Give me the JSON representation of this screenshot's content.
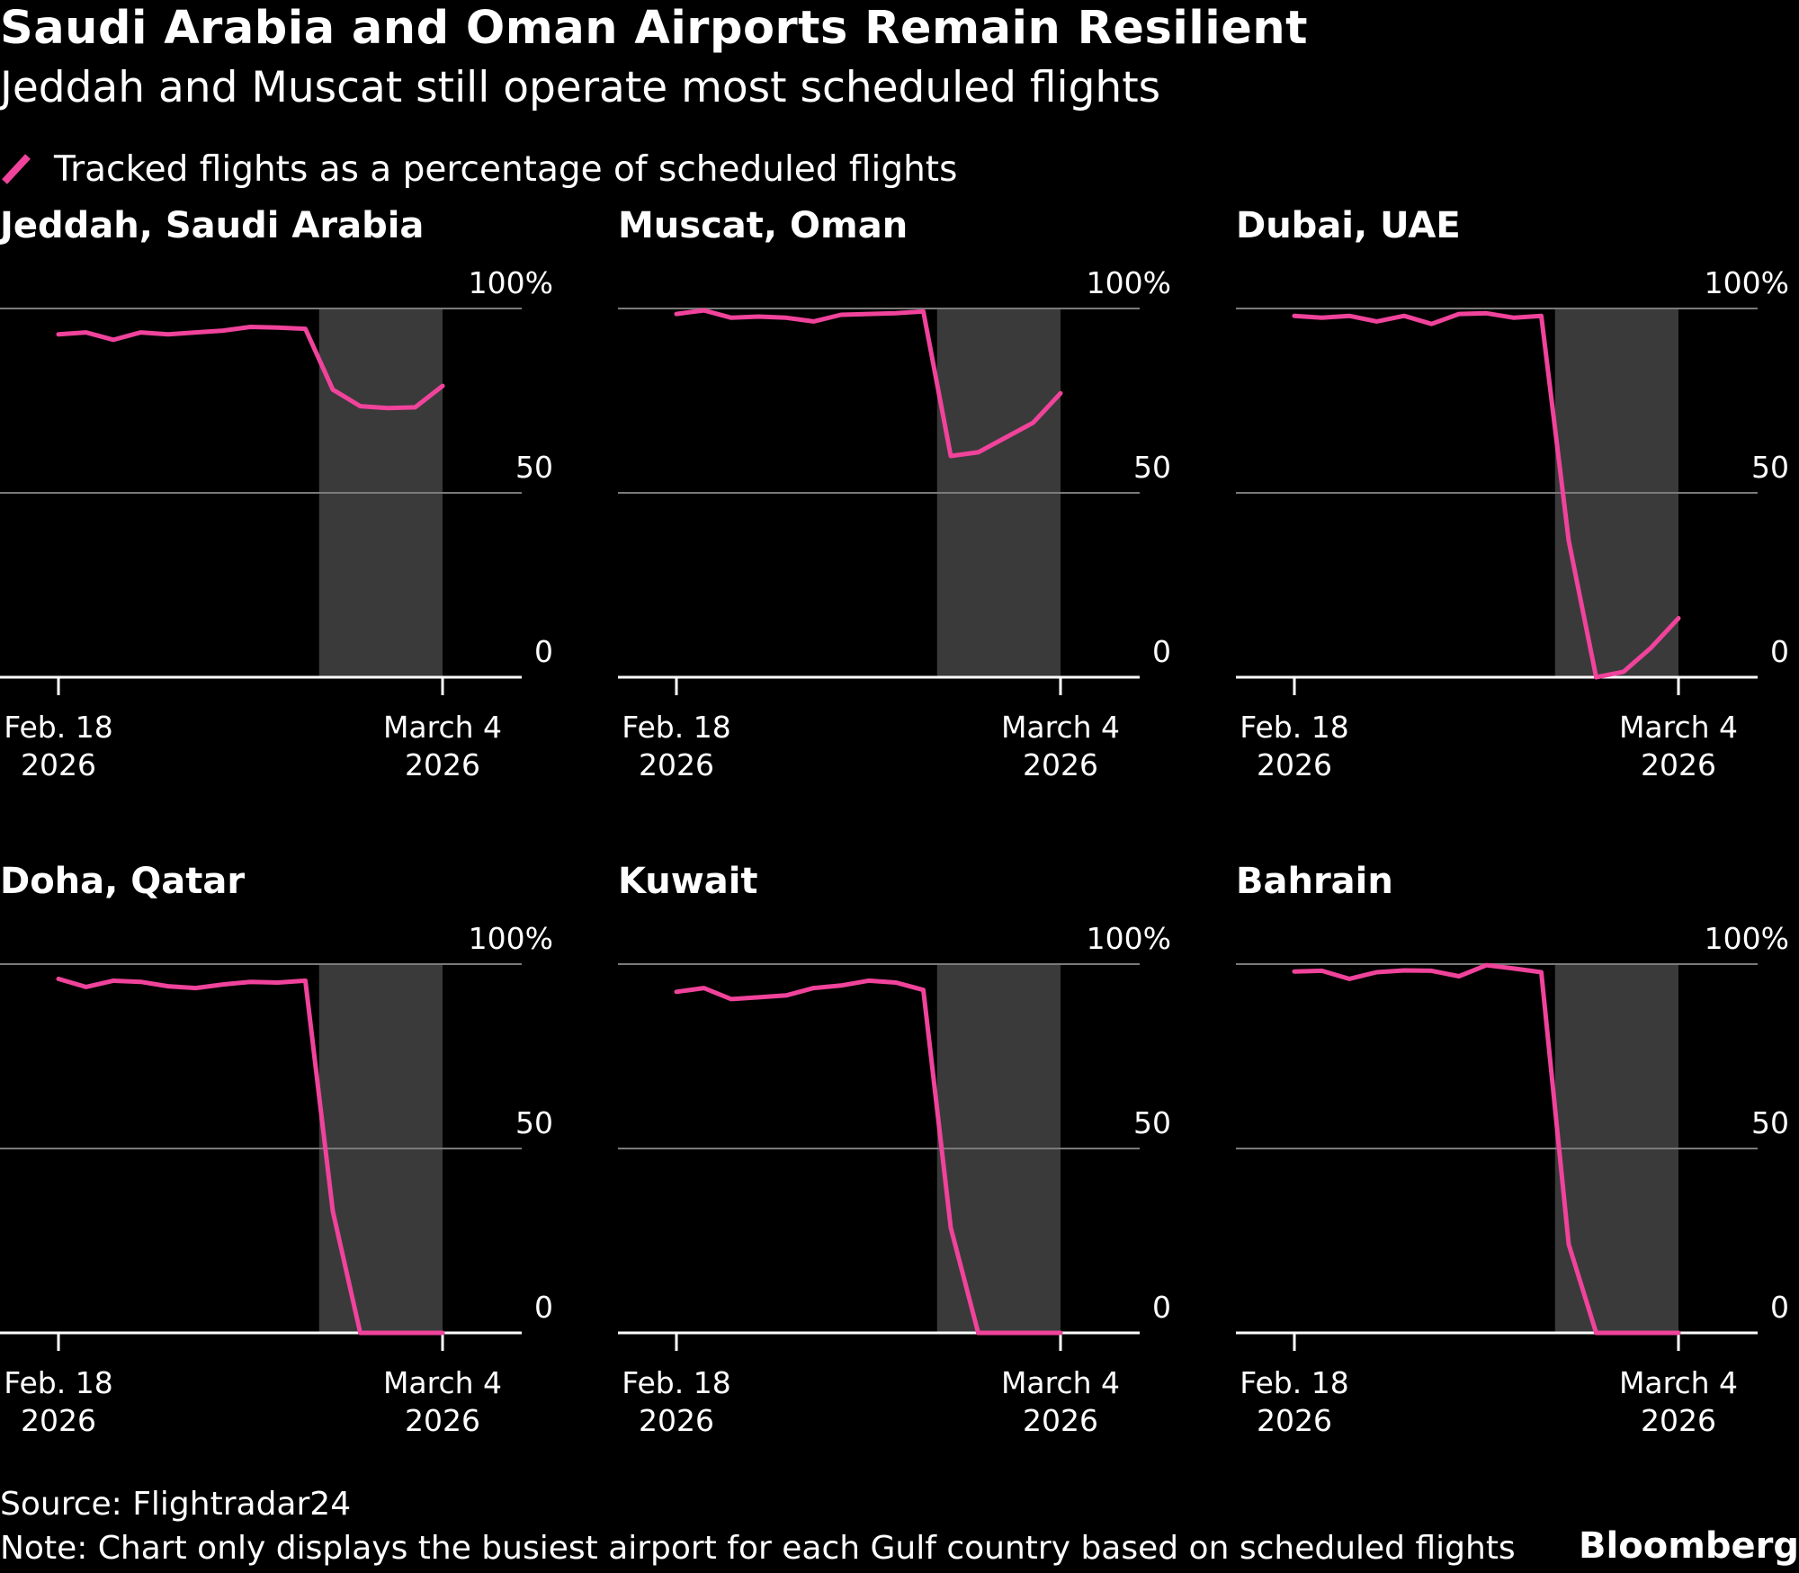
{
  "title": "Saudi Arabia and Oman Airports Remain Resilient",
  "subtitle": "Jeddah and Muscat still operate most scheduled flights",
  "legend": {
    "label": "Tracked flights as a percentage of scheduled flights",
    "color": "#f0439b"
  },
  "colors": {
    "background": "#000000",
    "line": "#f0439b",
    "shade": "#3a3a3a",
    "grid": "#7a7a7a",
    "axis": "#ffffff",
    "text": "#ffffff"
  },
  "source": "Source: Flightradar24",
  "note": "Note: Chart only displays the busiest airport for each Gulf country based on scheduled flights",
  "brand": "Bloomberg",
  "chart_data": [
    {
      "type": "line",
      "title": "Jeddah, Saudi Arabia",
      "x_start": "2026-02-18",
      "xlim": [
        "2026-02-16",
        "2026-03-07"
      ],
      "ylim": [
        0,
        100
      ],
      "yticks": [
        0,
        50,
        100
      ],
      "ytick_labels": [
        "0",
        "50",
        "100%"
      ],
      "xticks": [
        {
          "date": "2026-02-18",
          "label1": "Feb. 18",
          "label2": "2026"
        },
        {
          "date": "2026-03-04",
          "label1": "March 4",
          "label2": "2026"
        }
      ],
      "shaded_range": [
        "2026-02-28",
        "2026-03-04"
      ],
      "grid": true,
      "values": [
        93,
        93.5,
        91.5,
        93.5,
        93,
        93.5,
        94,
        95,
        94.8,
        94.5,
        78,
        73.5,
        73,
        73.2,
        79
      ]
    },
    {
      "type": "line",
      "title": "Muscat, Oman",
      "x_start": "2026-02-18",
      "xlim": [
        "2026-02-16",
        "2026-03-07"
      ],
      "ylim": [
        0,
        100
      ],
      "yticks": [
        0,
        50,
        100
      ],
      "ytick_labels": [
        "0",
        "50",
        "100%"
      ],
      "xticks": [
        {
          "date": "2026-02-18",
          "label1": "Feb. 18",
          "label2": "2026"
        },
        {
          "date": "2026-03-04",
          "label1": "March 4",
          "label2": "2026"
        }
      ],
      "shaded_range": [
        "2026-02-28",
        "2026-03-04"
      ],
      "grid": true,
      "values": [
        98.5,
        99.5,
        97.5,
        97.8,
        97.5,
        96.5,
        98.3,
        98.5,
        98.7,
        99.2,
        60,
        61,
        65,
        69,
        77
      ]
    },
    {
      "type": "line",
      "title": "Dubai, UAE",
      "x_start": "2026-02-18",
      "xlim": [
        "2026-02-16",
        "2026-03-07"
      ],
      "ylim": [
        0,
        100
      ],
      "yticks": [
        0,
        50,
        100
      ],
      "ytick_labels": [
        "0",
        "50",
        "100%"
      ],
      "xticks": [
        {
          "date": "2026-02-18",
          "label1": "Feb. 18",
          "label2": "2026"
        },
        {
          "date": "2026-03-04",
          "label1": "March 4",
          "label2": "2026"
        }
      ],
      "shaded_range": [
        "2026-02-28",
        "2026-03-04"
      ],
      "grid": true,
      "values": [
        98,
        97.5,
        98,
        96.5,
        98,
        95.8,
        98.5,
        98.7,
        97.5,
        98,
        37,
        0,
        1.5,
        8,
        16
      ]
    },
    {
      "type": "line",
      "title": "Doha, Qatar",
      "x_start": "2026-02-18",
      "xlim": [
        "2026-02-16",
        "2026-03-07"
      ],
      "ylim": [
        0,
        100
      ],
      "yticks": [
        0,
        50,
        100
      ],
      "ytick_labels": [
        "0",
        "50",
        "100%"
      ],
      "xticks": [
        {
          "date": "2026-02-18",
          "label1": "Feb. 18",
          "label2": "2026"
        },
        {
          "date": "2026-03-04",
          "label1": "March 4",
          "label2": "2026"
        }
      ],
      "shaded_range": [
        "2026-02-28",
        "2026-03-04"
      ],
      "grid": true,
      "values": [
        96,
        93.8,
        95.5,
        95.2,
        94,
        93.5,
        94.5,
        95.2,
        95,
        95.5,
        33,
        0,
        0,
        0,
        0
      ]
    },
    {
      "type": "line",
      "title": "Kuwait",
      "x_start": "2026-02-18",
      "xlim": [
        "2026-02-16",
        "2026-03-07"
      ],
      "ylim": [
        0,
        100
      ],
      "yticks": [
        0,
        50,
        100
      ],
      "ytick_labels": [
        "0",
        "50",
        "100%"
      ],
      "xticks": [
        {
          "date": "2026-02-18",
          "label1": "Feb. 18",
          "label2": "2026"
        },
        {
          "date": "2026-03-04",
          "label1": "March 4",
          "label2": "2026"
        }
      ],
      "shaded_range": [
        "2026-02-28",
        "2026-03-04"
      ],
      "grid": true,
      "values": [
        92.5,
        93.5,
        90.5,
        91,
        91.5,
        93.5,
        94.2,
        95.5,
        95,
        93,
        28.5,
        0,
        0,
        0,
        0
      ]
    },
    {
      "type": "line",
      "title": "Bahrain",
      "x_start": "2026-02-18",
      "xlim": [
        "2026-02-16",
        "2026-03-07"
      ],
      "ylim": [
        0,
        100
      ],
      "yticks": [
        0,
        50,
        100
      ],
      "ytick_labels": [
        "0",
        "50",
        "100%"
      ],
      "xticks": [
        {
          "date": "2026-02-18",
          "label1": "Feb. 18",
          "label2": "2026"
        },
        {
          "date": "2026-03-04",
          "label1": "March 4",
          "label2": "2026"
        }
      ],
      "shaded_range": [
        "2026-02-28",
        "2026-03-04"
      ],
      "grid": true,
      "values": [
        98,
        98.2,
        96,
        97.8,
        98.3,
        98.2,
        96.7,
        99.7,
        98.8,
        97.8,
        24,
        0,
        0,
        0,
        0
      ]
    }
  ]
}
